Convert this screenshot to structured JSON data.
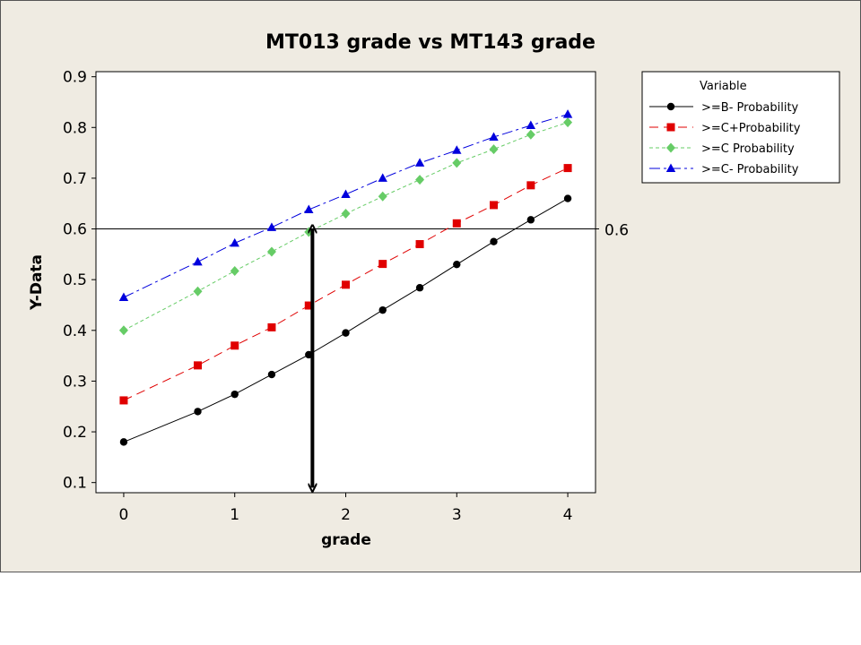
{
  "chart_data": {
    "type": "line",
    "title": "MT013 grade vs MT143 grade",
    "xlabel": "grade",
    "ylabel": "Y-Data",
    "xlim": [
      -0.25,
      4.25
    ],
    "ylim": [
      0.08,
      0.91
    ],
    "xticks": [
      0,
      1,
      2,
      3,
      4
    ],
    "xtick_labels": [
      "0",
      "1",
      "2",
      "3",
      "4"
    ],
    "yticks": [
      0.1,
      0.2,
      0.3,
      0.4,
      0.5,
      0.6,
      0.7,
      0.8,
      0.9
    ],
    "ytick_labels": [
      "0.1",
      "0.2",
      "0.3",
      "0.4",
      "0.5",
      "0.6",
      "0.7",
      "0.8",
      "0.9"
    ],
    "grid": false,
    "legend": {
      "title": "Variable",
      "position": "right-top"
    },
    "x": [
      0,
      0.667,
      1,
      1.333,
      1.667,
      2,
      2.333,
      2.667,
      3,
      3.333,
      3.667,
      4
    ],
    "series": [
      {
        "name": ">=B- Probability",
        "color": "#000000",
        "marker": "circle",
        "line_style": "solid",
        "values": [
          0.18,
          0.24,
          0.274,
          0.313,
          0.352,
          0.395,
          0.44,
          0.484,
          0.53,
          0.575,
          0.618,
          0.66
        ]
      },
      {
        "name": ">=C+Probability",
        "color": "#e00000",
        "marker": "square",
        "line_style": "dashed",
        "values": [
          0.262,
          0.331,
          0.37,
          0.406,
          0.449,
          0.49,
          0.531,
          0.57,
          0.611,
          0.647,
          0.686,
          0.72
        ]
      },
      {
        "name": ">=C Probability",
        "color": "#66cc66",
        "marker": "diamond",
        "line_style": "dotted",
        "values": [
          0.4,
          0.477,
          0.517,
          0.555,
          0.594,
          0.63,
          0.664,
          0.697,
          0.73,
          0.757,
          0.786,
          0.81
        ]
      },
      {
        "name": ">=C- Probability",
        "color": "#0000dd",
        "marker": "triangle",
        "line_style": "dash-dot",
        "values": [
          0.465,
          0.535,
          0.572,
          0.603,
          0.638,
          0.668,
          0.7,
          0.73,
          0.755,
          0.781,
          0.804,
          0.826
        ]
      }
    ],
    "reference_line": {
      "y": 0.6,
      "label": "0.6",
      "color": "#000000"
    },
    "double_arrow": {
      "x": 1.7,
      "y_from": 0.09,
      "y_to": 0.6,
      "color": "#000000"
    }
  }
}
